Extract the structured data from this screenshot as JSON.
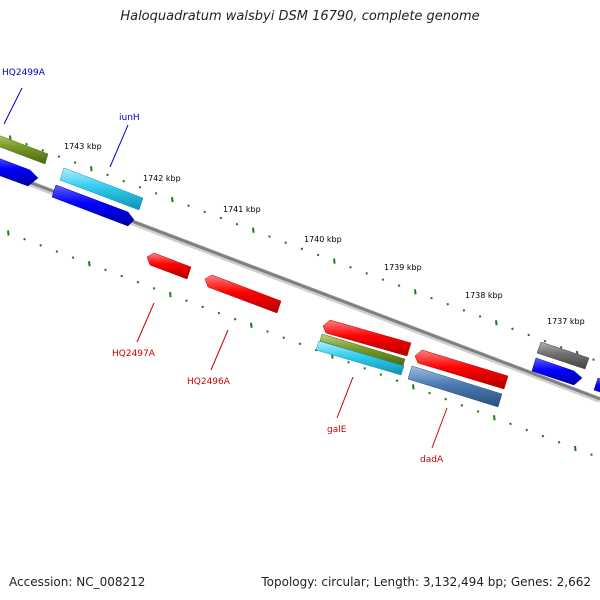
{
  "title": "Haloquadratum walsbyi DSM 16790, complete genome",
  "footer": {
    "accession": "Accession: NC_008212",
    "topology": "Topology: circular; Length: 3,132,494 bp; Genes: 2,662"
  },
  "ticks": [
    "1743 kbp",
    "1742 kbp",
    "1741 kbp",
    "1740 kbp",
    "1739 kbp",
    "1738 kbp",
    "1737 kbp"
  ],
  "gene_labels": [
    {
      "text": "HQ2499A",
      "color": "#0000cc"
    },
    {
      "text": "iunH",
      "color": "#0000cc"
    },
    {
      "text": "HQ2497A",
      "color": "#cc0000"
    },
    {
      "text": "HQ2496A",
      "color": "#cc0000"
    },
    {
      "text": "galE",
      "color": "#cc0000"
    },
    {
      "text": "dadA",
      "color": "#cc0000"
    }
  ],
  "colors": {
    "backbone": "#808080",
    "forward_gene": "#0000ff",
    "reverse_gene": "#ff0000",
    "tick": "#1a7a1a"
  }
}
